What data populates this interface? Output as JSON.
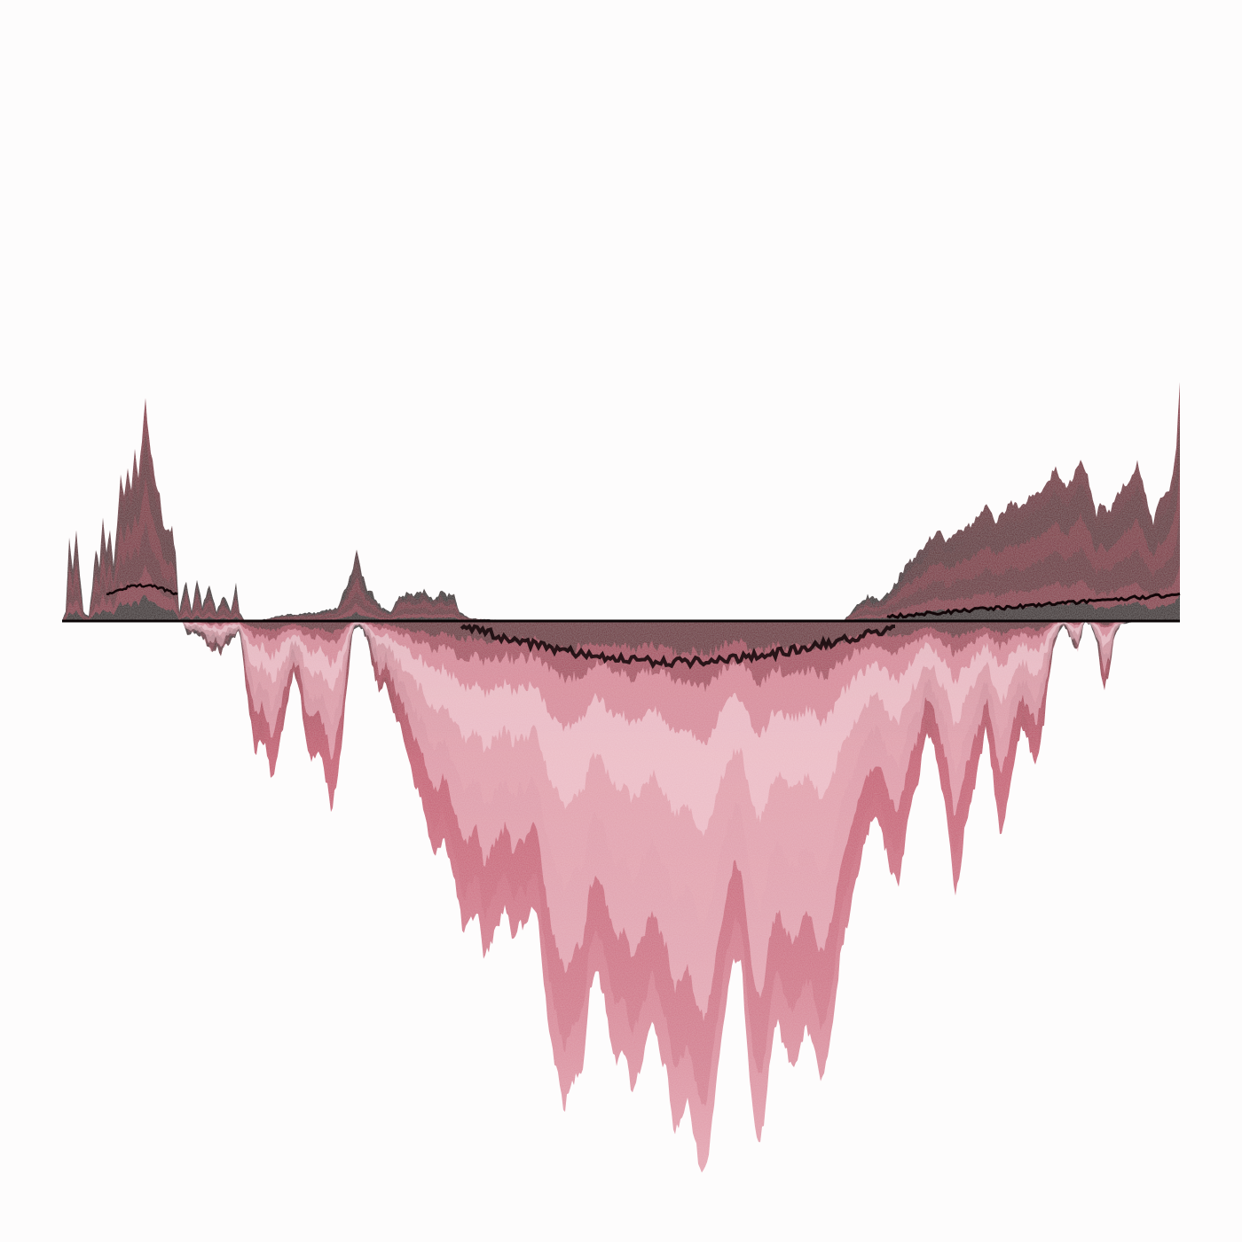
{
  "palette": {
    "background": "#fdfcfc",
    "baseline": "#0a0405",
    "ink_dark": "#120608",
    "crimson_deep": "#5a1422",
    "crimson": "#8e2a3e",
    "rose": "#c4566c",
    "rose_light": "#e4a3b0",
    "blush": "#f2cdd5"
  }
}
